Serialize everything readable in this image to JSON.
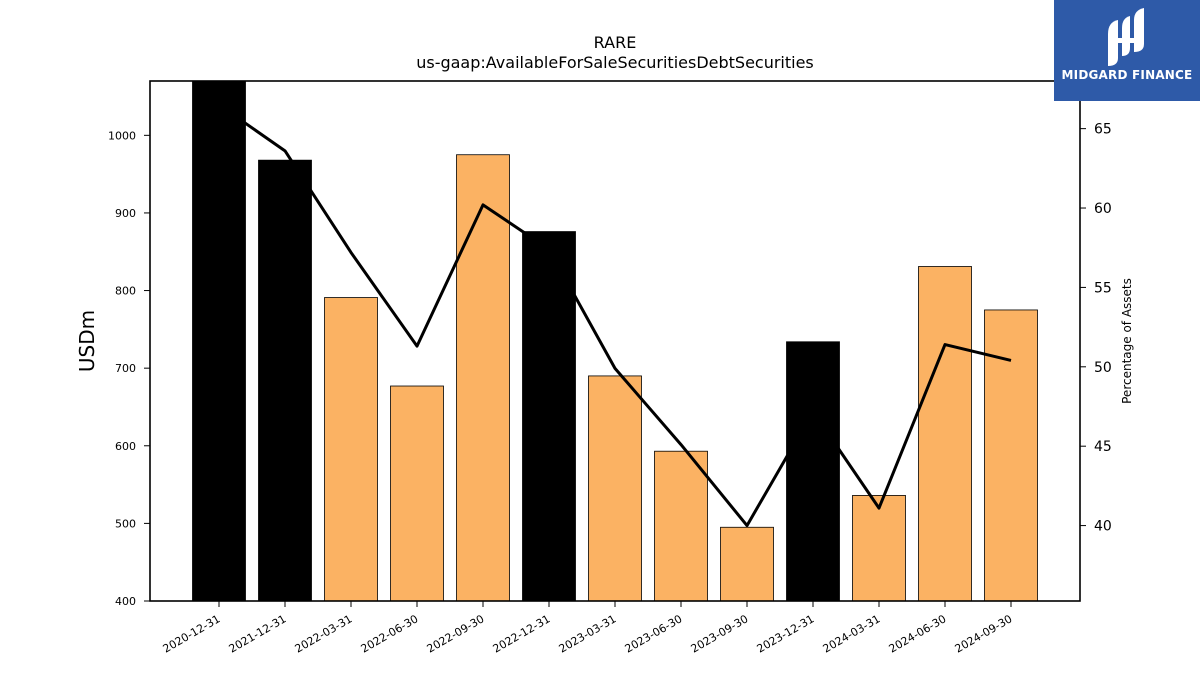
{
  "brand": {
    "name": "MIDGARD FINANCE",
    "color": "#2e5aa8"
  },
  "chart_data": {
    "type": "bar",
    "title": "RARE",
    "subtitle": "us-gaap:AvailableForSaleSecuritiesDebtSecurities",
    "ylabel": "USDm",
    "ylabel_right": "Percentage of Assets",
    "categories": [
      "2020-12-31",
      "2021-12-31",
      "2022-03-31",
      "2022-06-30",
      "2022-09-30",
      "2022-12-31",
      "2023-03-31",
      "2023-06-30",
      "2023-09-30",
      "2023-12-31",
      "2024-03-31",
      "2024-06-30",
      "2024-09-30"
    ],
    "series": [
      {
        "type": "bar",
        "axis": "left",
        "values": [
          1070,
          968,
          791,
          677,
          975,
          876,
          690,
          593,
          495,
          734,
          536,
          831,
          775
        ],
        "colors": [
          "#000000",
          "#000000",
          "#fbb263",
          "#fbb263",
          "#fbb263",
          "#000000",
          "#fbb263",
          "#fbb263",
          "#fbb263",
          "#000000",
          "#fbb263",
          "#fbb263",
          "#fbb263"
        ]
      },
      {
        "type": "line",
        "axis": "right",
        "color": "#000000",
        "values": [
          66.5,
          63.6,
          57.2,
          51.3,
          60.2,
          57.4,
          49.9,
          45.1,
          40.0,
          47.2,
          41.1,
          51.4,
          50.4
        ]
      }
    ],
    "ylim": [
      400,
      1070
    ],
    "ylim_right": [
      35.25,
      68.0
    ],
    "yticks": [
      400,
      500,
      600,
      700,
      800,
      900,
      1000
    ],
    "yticks_right": [
      40,
      45,
      50,
      55,
      60,
      65
    ],
    "grid": false,
    "legend": "none"
  }
}
